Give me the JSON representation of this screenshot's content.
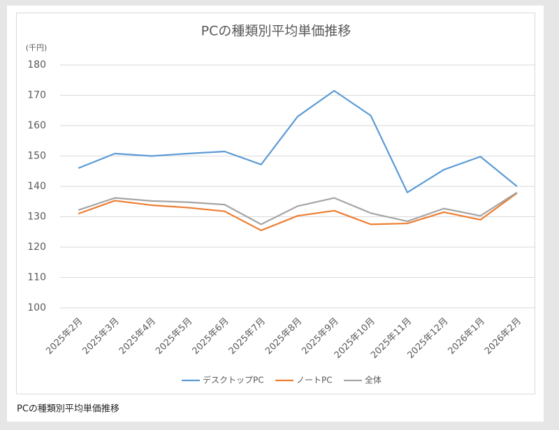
{
  "chart_data": {
    "type": "line",
    "title": "PCの種類別平均単価推移",
    "y_unit": "(千円)",
    "categories": [
      "2025年2月",
      "2025年3月",
      "2025年4月",
      "2025年5月",
      "2025年6月",
      "2025年7月",
      "2025年8月",
      "2025年9月",
      "2025年10月",
      "2025年11月",
      "2025年12月",
      "2026年1月",
      "2026年2月"
    ],
    "series": [
      {
        "name": "デスクトップPC",
        "color": "#5b9bd5",
        "values": [
          146,
          150.8,
          150,
          150.8,
          151.5,
          147.2,
          163,
          171.5,
          163.3,
          138,
          145.5,
          149.8,
          140
        ]
      },
      {
        "name": "ノートPC",
        "color": "#ed7d31",
        "values": [
          131,
          135.3,
          133.8,
          133,
          131.8,
          125.5,
          130.3,
          132,
          127.5,
          127.8,
          131.5,
          129,
          137.8
        ]
      },
      {
        "name": "全体",
        "color": "#a5a5a5",
        "values": [
          132.2,
          136.2,
          135.2,
          134.8,
          134,
          127.5,
          133.5,
          136.2,
          131.2,
          128.5,
          132.7,
          130.3,
          138
        ]
      }
    ],
    "ylim": [
      100,
      180
    ],
    "yticks": [
      100,
      110,
      120,
      130,
      140,
      150,
      160,
      170,
      180
    ],
    "grid": true,
    "legend": "bottom"
  },
  "caption": "PCの種類別平均単価推移"
}
